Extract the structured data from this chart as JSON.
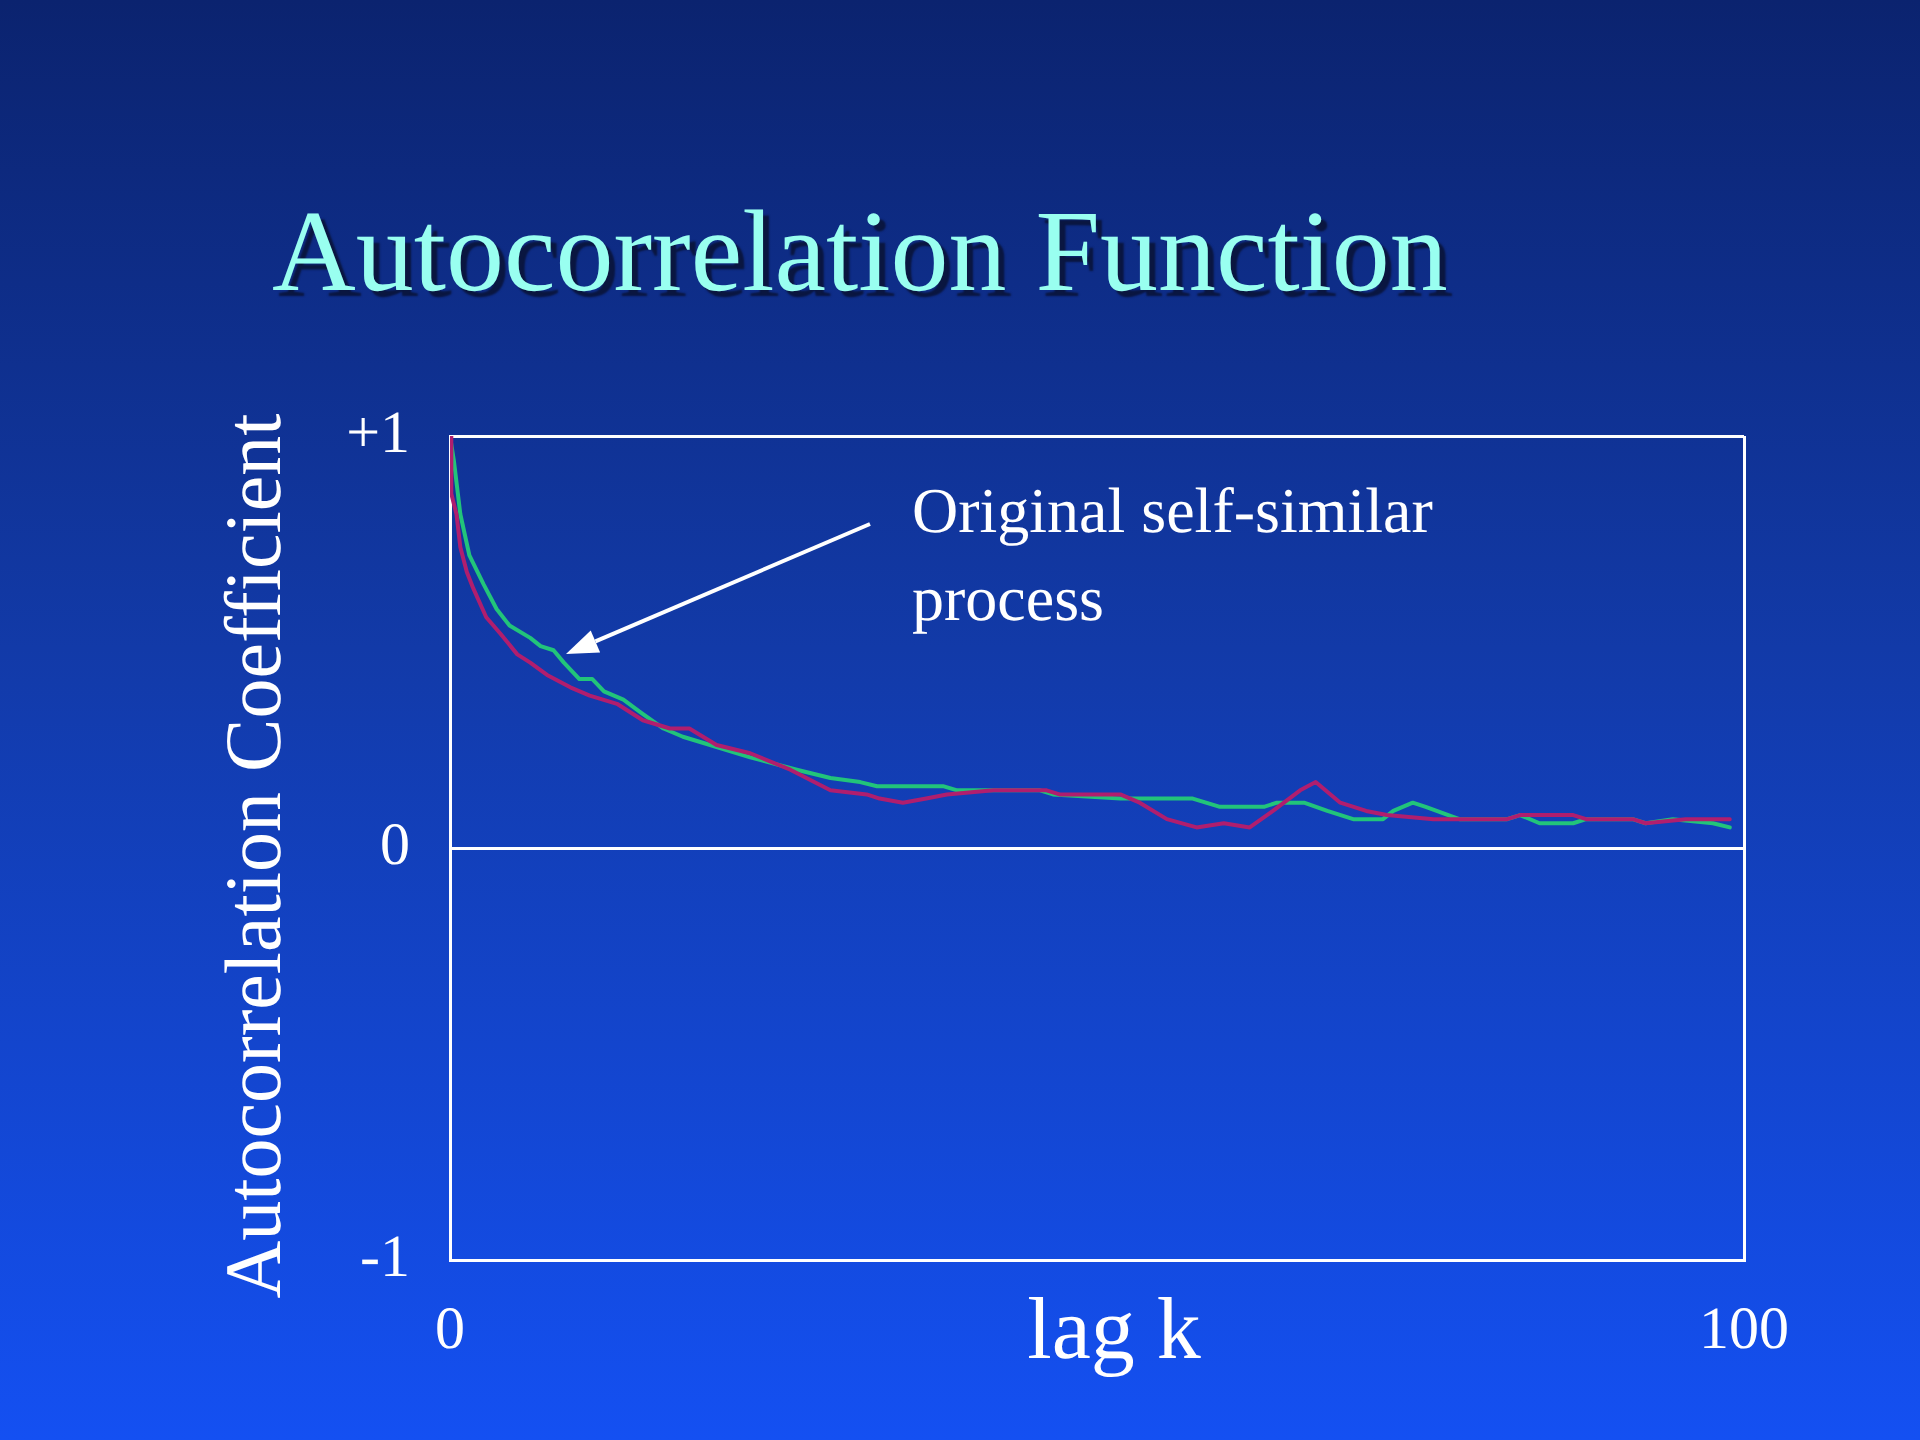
{
  "chart_data": {
    "type": "line",
    "title": "Autocorrelation Function",
    "xlabel": "lag k",
    "ylabel": "Autocorrelation Coefficient",
    "annotations": [
      "Original self-similar process"
    ],
    "xlim": [
      0,
      100
    ],
    "xticks": [
      0,
      100
    ],
    "ylim": [
      -1,
      1
    ],
    "yticks": [
      -1,
      0,
      {
        "value": 1,
        "label": "+1"
      }
    ],
    "grid": true,
    "series": [
      {
        "color": "#22c47a",
        "x": [
          0,
          0.3,
          0.8,
          1.5,
          2.6,
          3.6,
          4.6,
          6.2,
          7,
          8,
          8.8,
          10,
          11,
          11.9,
          13.4,
          14.7,
          16.5,
          18,
          20.1,
          23.2,
          26.8,
          29.4,
          31.7,
          33,
          38.1,
          39.2,
          45.6,
          46.6,
          51.8,
          52.8,
          57.4,
          59.5,
          62.9,
          63.9,
          66,
          67.8,
          69.8,
          72.1,
          72.9,
          74.4,
          75.4,
          78,
          81.7,
          82.7,
          84.2,
          86.8,
          87.8,
          91.4,
          92.4,
          94.5,
          97.6,
          98.9
        ],
        "values": [
          1.0,
          0.94,
          0.81,
          0.71,
          0.64,
          0.58,
          0.54,
          0.51,
          0.49,
          0.48,
          0.45,
          0.41,
          0.41,
          0.38,
          0.36,
          0.33,
          0.29,
          0.27,
          0.25,
          0.22,
          0.19,
          0.17,
          0.16,
          0.15,
          0.15,
          0.14,
          0.14,
          0.13,
          0.12,
          0.12,
          0.12,
          0.1,
          0.1,
          0.11,
          0.11,
          0.09,
          0.07,
          0.07,
          0.09,
          0.11,
          0.1,
          0.07,
          0.07,
          0.08,
          0.06,
          0.06,
          0.07,
          0.07,
          0.06,
          0.07,
          0.06,
          0.05
        ]
      },
      {
        "color": "#b01e6e",
        "x": [
          0,
          0.1,
          0.5,
          0.8,
          1.3,
          1.8,
          2.8,
          3.9,
          5.2,
          6.2,
          7.5,
          9.3,
          10.8,
          12.9,
          14.9,
          17,
          18.5,
          20.6,
          23.2,
          26.3,
          29.4,
          32.2,
          33.2,
          35,
          36.8,
          38.4,
          42,
          46.1,
          47.1,
          51.8,
          53.3,
          55.4,
          57.7,
          59.8,
          61.8,
          63.6,
          65.7,
          66.9,
          68.8,
          70.8,
          72.4,
          76,
          81.7,
          82.7,
          86.8,
          87.8,
          91.4,
          92.4,
          95.5,
          98.9
        ],
        "values": [
          1.0,
          0.86,
          0.81,
          0.73,
          0.67,
          0.63,
          0.56,
          0.52,
          0.47,
          0.45,
          0.42,
          0.39,
          0.37,
          0.35,
          0.31,
          0.29,
          0.29,
          0.25,
          0.23,
          0.19,
          0.14,
          0.13,
          0.12,
          0.11,
          0.12,
          0.13,
          0.14,
          0.14,
          0.13,
          0.13,
          0.11,
          0.07,
          0.05,
          0.06,
          0.05,
          0.09,
          0.14,
          0.16,
          0.11,
          0.09,
          0.08,
          0.07,
          0.07,
          0.08,
          0.08,
          0.07,
          0.07,
          0.06,
          0.07,
          0.07
        ]
      }
    ]
  }
}
